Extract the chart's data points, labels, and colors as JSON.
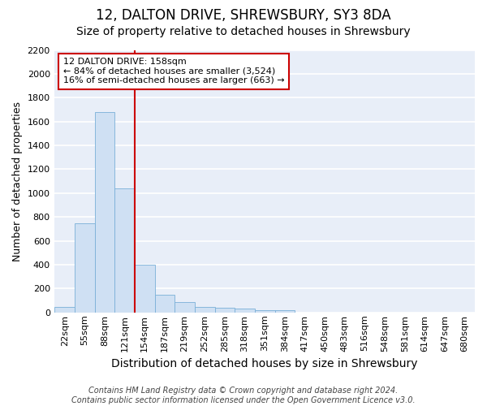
{
  "title": "12, DALTON DRIVE, SHREWSBURY, SY3 8DA",
  "subtitle": "Size of property relative to detached houses in Shrewsbury",
  "xlabel": "Distribution of detached houses by size in Shrewsbury",
  "ylabel": "Number of detached properties",
  "footer_line1": "Contains HM Land Registry data © Crown copyright and database right 2024.",
  "footer_line2": "Contains public sector information licensed under the Open Government Licence v3.0.",
  "bin_labels": [
    "22sqm",
    "55sqm",
    "88sqm",
    "121sqm",
    "154sqm",
    "187sqm",
    "219sqm",
    "252sqm",
    "285sqm",
    "318sqm",
    "351sqm",
    "384sqm",
    "417sqm",
    "450sqm",
    "483sqm",
    "516sqm",
    "548sqm",
    "581sqm",
    "614sqm",
    "647sqm",
    "680sqm"
  ],
  "bar_values": [
    50,
    750,
    1680,
    1040,
    400,
    150,
    85,
    50,
    40,
    30,
    20,
    20,
    0,
    0,
    0,
    0,
    0,
    0,
    0,
    0,
    0
  ],
  "bar_color": "#cfe0f3",
  "bar_edge_color": "#7ab0d8",
  "bg_color": "#e8eef8",
  "grid_color": "#ffffff",
  "fig_bg_color": "#ffffff",
  "ylim": [
    0,
    2200
  ],
  "yticks": [
    0,
    200,
    400,
    600,
    800,
    1000,
    1200,
    1400,
    1600,
    1800,
    2000,
    2200
  ],
  "red_line_bin_index": 4,
  "red_line_color": "#cc0000",
  "annotation_text_line1": "12 DALTON DRIVE: 158sqm",
  "annotation_text_line2": "← 84% of detached houses are smaller (3,524)",
  "annotation_text_line3": "16% of semi-detached houses are larger (663) →",
  "annotation_box_color": "#ffffff",
  "annotation_box_edge": "#cc0000",
  "title_fontsize": 12,
  "title_bold": false,
  "subtitle_fontsize": 10,
  "ylabel_fontsize": 9,
  "xlabel_fontsize": 10,
  "tick_fontsize": 8,
  "annotation_fontsize": 8,
  "footer_fontsize": 7
}
